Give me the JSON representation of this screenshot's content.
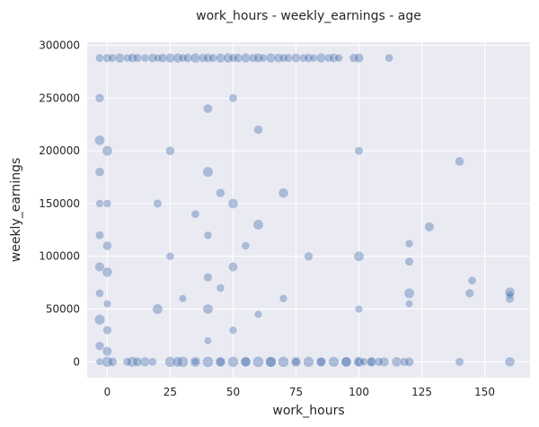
{
  "chart_data": {
    "type": "scatter",
    "title": "work_hours - weekly_earnings - age",
    "xlabel": "work_hours",
    "ylabel": "weekly_earnings",
    "xlim": [
      -8,
      168
    ],
    "ylim": [
      -15000,
      303000
    ],
    "xticks": [
      0,
      25,
      50,
      75,
      100,
      125,
      150
    ],
    "xtick_labels": [
      "0",
      "25",
      "50",
      "75",
      "100",
      "125",
      "150"
    ],
    "yticks": [
      0,
      50000,
      100000,
      150000,
      200000,
      250000,
      300000
    ],
    "ytick_labels": [
      "0",
      "50000",
      "100000",
      "150000",
      "200000",
      "250000",
      "300000"
    ],
    "grid": true,
    "background": "#eaeaf2",
    "point_color": "#4c72b0",
    "point_opacity": 0.4,
    "size_encodes": "age",
    "series": [
      {
        "x": [
          -3,
          -3,
          -3,
          -3,
          -3,
          -3,
          -3,
          -3,
          -3,
          -3,
          -3,
          0,
          0,
          0,
          0,
          0,
          0,
          0,
          0,
          0,
          2,
          5,
          8,
          10,
          10,
          12,
          15,
          15,
          18,
          20,
          20,
          20,
          22,
          25,
          25,
          25,
          25,
          28,
          30,
          30,
          30,
          32,
          35,
          35,
          35,
          38,
          40,
          40,
          40,
          40,
          40,
          40,
          40,
          40,
          42,
          45,
          45,
          45,
          45,
          48,
          50,
          50,
          50,
          50,
          50,
          50,
          52,
          55,
          55,
          55,
          58,
          60,
          60,
          60,
          60,
          60,
          62,
          65,
          65,
          68,
          70,
          70,
          70,
          70,
          72,
          75,
          75,
          78,
          80,
          80,
          80,
          82,
          85,
          85,
          88,
          90,
          90,
          92,
          95,
          98,
          100,
          100,
          100,
          100,
          100,
          105,
          110,
          112,
          115,
          118,
          120,
          120,
          120,
          120,
          120,
          128,
          140,
          140,
          144,
          145,
          160,
          160,
          160,
          160,
          2,
          8,
          12,
          18,
          28,
          35,
          45,
          55,
          65,
          75,
          85,
          95,
          100,
          102,
          105,
          108
        ],
        "y": [
          0,
          15000,
          40000,
          65000,
          90000,
          120000,
          150000,
          180000,
          210000,
          250000,
          288000,
          0,
          10000,
          30000,
          55000,
          85000,
          110000,
          150000,
          200000,
          288000,
          288000,
          288000,
          288000,
          288000,
          0,
          288000,
          288000,
          0,
          288000,
          288000,
          50000,
          150000,
          288000,
          288000,
          0,
          100000,
          200000,
          288000,
          288000,
          0,
          60000,
          288000,
          288000,
          0,
          140000,
          288000,
          288000,
          0,
          20000,
          50000,
          80000,
          120000,
          180000,
          240000,
          288000,
          288000,
          0,
          70000,
          160000,
          288000,
          288000,
          0,
          30000,
          90000,
          150000,
          250000,
          288000,
          288000,
          0,
          110000,
          288000,
          288000,
          0,
          45000,
          130000,
          220000,
          288000,
          288000,
          0,
          288000,
          288000,
          0,
          60000,
          160000,
          288000,
          288000,
          0,
          288000,
          288000,
          0,
          100000,
          288000,
          288000,
          0,
          288000,
          288000,
          0,
          288000,
          0,
          288000,
          288000,
          0,
          50000,
          100000,
          200000,
          0,
          0,
          288000,
          0,
          0,
          0,
          55000,
          65000,
          95000,
          112000,
          128000,
          0,
          190000,
          65000,
          77000,
          0,
          60000,
          63000,
          66000,
          0,
          0,
          0,
          0,
          0,
          0,
          0,
          0,
          0,
          0,
          0,
          0,
          0,
          0,
          0,
          0
        ],
        "size": [
          30,
          45,
          60,
          38,
          52,
          41,
          35,
          48,
          57,
          44,
          39,
          65,
          50,
          42,
          33,
          55,
          47,
          36,
          58,
          44,
          40,
          52,
          37,
          49,
          61,
          43,
          38,
          54,
          46,
          35,
          59,
          42,
          48,
          51,
          63,
          37,
          45,
          53,
          40,
          66,
          34,
          47,
          55,
          62,
          39,
          44,
          50,
          68,
          31,
          57,
          43,
          36,
          60,
          48,
          41,
          52,
          64,
          38,
          46,
          54,
          42,
          65,
          35,
          49,
          56,
          40,
          47,
          53,
          61,
          37,
          44,
          50,
          67,
          33,
          58,
          45,
          39,
          52,
          62,
          48,
          41,
          66,
          36,
          55,
          43,
          50,
          60,
          38,
          47,
          63,
          44,
          35,
          53,
          59,
          41,
          49,
          62,
          37,
          56,
          45,
          51,
          64,
          34,
          57,
          40,
          46,
          52,
          38,
          55,
          43,
          48,
          33,
          58,
          42,
          36,
          50,
          41,
          47,
          44,
          39,
          53,
          45,
          37,
          56,
          48,
          42,
          51,
          39,
          60,
          35,
          47,
          54,
          62,
          40,
          46,
          57,
          49,
          38,
          52,
          44
        ]
      }
    ]
  }
}
